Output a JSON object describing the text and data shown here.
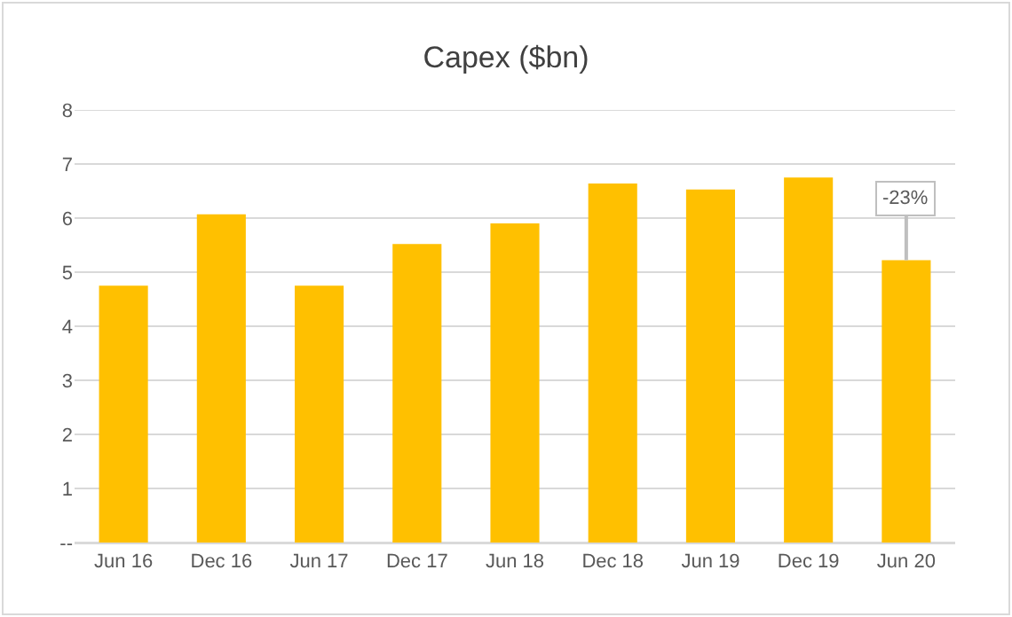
{
  "chart_data": {
    "type": "bar",
    "title": "Capex ($bn)",
    "categories": [
      "Jun 16",
      "Dec 16",
      "Jun 17",
      "Dec 17",
      "Jun 18",
      "Dec 18",
      "Jun 19",
      "Dec 19",
      "Jun 20"
    ],
    "values": [
      4.75,
      6.07,
      4.75,
      5.52,
      5.9,
      6.64,
      6.53,
      6.75,
      5.22
    ],
    "color": "#ffc000",
    "ylim": [
      0,
      8
    ],
    "yticks": [
      {
        "value": 0,
        "label": "--"
      },
      1,
      2,
      3,
      4,
      5,
      6,
      7,
      8
    ],
    "grid": "y",
    "annotations": [
      {
        "text": "-23%",
        "x": "Jun 20",
        "y": 5.22
      }
    ]
  }
}
